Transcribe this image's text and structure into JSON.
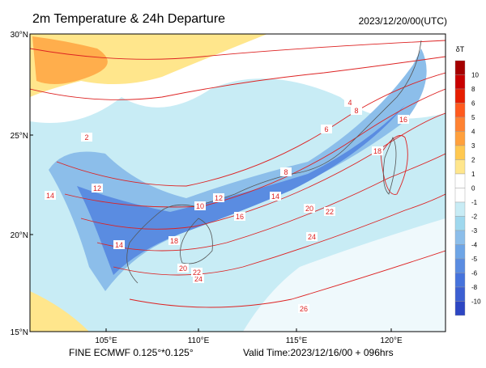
{
  "header": {
    "title": "2m Temperature & 24h Departure",
    "time": "2023/12/20/00(UTC)"
  },
  "axes": {
    "lat_labels": [
      "30°N",
      "25°N",
      "20°N",
      "15°N"
    ],
    "lon_labels": [
      "105°E",
      "110°E",
      "115°E",
      "120°E"
    ]
  },
  "legend": {
    "title": "δT",
    "levels": [
      10,
      8,
      6,
      5,
      4,
      3,
      2,
      1,
      0,
      -1,
      -2,
      -3,
      -4,
      -5,
      -6,
      -8,
      -10
    ],
    "colors": [
      "#a50000",
      "#c80000",
      "#e61e00",
      "#ff5a1e",
      "#ff8232",
      "#ffa03c",
      "#ffc850",
      "#ffe68c",
      "#ffffff",
      "#ffffff",
      "#c8ecf5",
      "#9fd8ee",
      "#8cbeea",
      "#6ea5e6",
      "#5a8ce1",
      "#4673dc",
      "#3c5fd2",
      "#2d46c3"
    ]
  },
  "contour_labels": [
    26,
    24,
    24,
    22,
    20,
    18,
    16,
    14,
    12,
    10,
    8,
    6,
    4,
    2,
    18,
    20,
    22,
    14,
    12,
    16,
    8,
    14
  ],
  "footer": {
    "model": "FINE ECMWF 0.125°*0.125°",
    "valid": "Valid Time:2023/12/16/00 + 096hrs"
  }
}
